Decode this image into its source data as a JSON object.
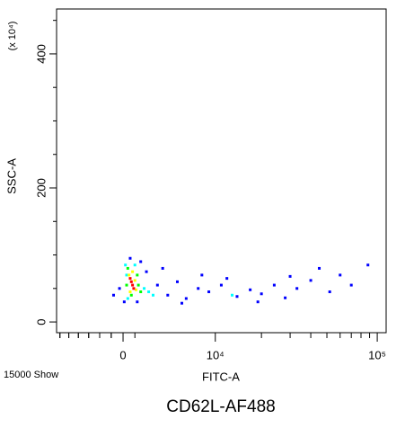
{
  "chart_data": {
    "type": "scatter",
    "title": "CD62L-AF488",
    "x_label": "FITC-A",
    "y_label": "SSC-A",
    "y_multiplier": "(x 10⁴)",
    "event_note": "15000 Show",
    "xscale": "asinh",
    "xlim": [
      -6400,
      113000
    ],
    "xticks": [
      0,
      {
        "value": 10000,
        "label": "10⁴"
      },
      {
        "value": 100000,
        "label": "10⁵"
      }
    ],
    "ylim": [
      -16,
      467
    ],
    "yticks": [
      0,
      200,
      400
    ],
    "series": [
      {
        "color": "#0000ff",
        "x": [
          -300,
          100,
          1500,
          3000,
          4000,
          5000,
          6000,
          7500,
          9000,
          11000,
          14000,
          17000,
          20000,
          24000,
          28000,
          33000,
          40000,
          45000,
          52000,
          60000,
          70000,
          88000,
          2000,
          3500,
          8000,
          -800,
          600,
          1200,
          19000,
          30000,
          12000,
          5500
        ],
        "y": [
          50,
          30,
          90,
          55,
          40,
          60,
          35,
          50,
          45,
          55,
          38,
          48,
          42,
          55,
          36,
          50,
          62,
          80,
          45,
          70,
          55,
          85,
          75,
          80,
          70,
          40,
          95,
          30,
          30,
          68,
          65,
          28
        ]
      },
      {
        "color": "#00ffff",
        "x": [
          200,
          1800,
          400,
          2200,
          1000,
          300,
          2600,
          13000
        ],
        "y": [
          85,
          50,
          35,
          45,
          85,
          70,
          40,
          40
        ]
      },
      {
        "color": "#00ff00",
        "x": [
          400,
          1300,
          300,
          1200,
          700,
          1500
        ],
        "y": [
          80,
          55,
          55,
          70,
          40,
          45
        ]
      },
      {
        "color": "#ffff00",
        "x": [
          500,
          1000,
          1100,
          600,
          800
        ],
        "y": [
          70,
          62,
          48,
          45,
          75
        ]
      },
      {
        "color": "#ff0000",
        "x": [
          700,
          800,
          600,
          900
        ],
        "y": [
          60,
          55,
          65,
          50
        ]
      }
    ]
  }
}
